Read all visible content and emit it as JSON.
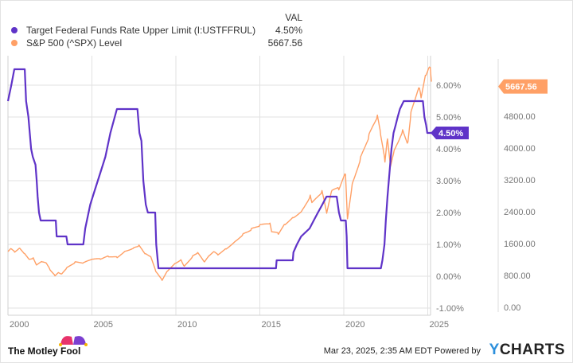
{
  "legend": {
    "value_header": "VAL",
    "items": [
      {
        "name": "Target Federal Funds Rate Upper Limit (I:USTFFRUL)",
        "value": "4.50%",
        "color": "#5f33c8"
      },
      {
        "name": "S&P 500 (^SPX) Level",
        "value": "5667.56",
        "color": "#ffa066"
      }
    ]
  },
  "footer": {
    "brand": "The Motley Fool",
    "timestamp": "Mar 23, 2025, 2:35 AM EDT",
    "powered_by": "Powered by",
    "ycharts_y": "Y",
    "ycharts_rest": "CHARTS"
  },
  "chart_data": {
    "type": "line",
    "x_ticks": [
      "2000",
      "2005",
      "2010",
      "2015",
      "2020",
      "2025"
    ],
    "xlim": [
      2000,
      2025.22
    ],
    "grid": true,
    "legend_placement": "top-left",
    "left_axis": {
      "ticks": [
        "-1.00%",
        "0.00%",
        "1.00%",
        "2.00%",
        "3.00%",
        "4.00%",
        "5.00%",
        "6.00%"
      ],
      "ylim": [
        -1,
        6.9
      ]
    },
    "right_axis": {
      "ticks": [
        "0.00",
        "800.00",
        "1600.00",
        "2400.00",
        "3200.00",
        "4000.00",
        "4800.00"
      ],
      "ylim": [
        0,
        6320
      ]
    },
    "series": [
      {
        "name": "Target Federal Funds Rate Upper Limit (I:USTFFRUL)",
        "axis": "left",
        "color": "#5f33c8",
        "last_label": "4.50%",
        "points": [
          [
            2000.0,
            5.5
          ],
          [
            2000.1,
            5.75
          ],
          [
            2000.2,
            6.0
          ],
          [
            2000.38,
            6.5
          ],
          [
            2001.0,
            6.5
          ],
          [
            2001.08,
            5.5
          ],
          [
            2001.22,
            5.0
          ],
          [
            2001.3,
            4.5
          ],
          [
            2001.38,
            4.0
          ],
          [
            2001.48,
            3.75
          ],
          [
            2001.64,
            3.5
          ],
          [
            2001.71,
            3.0
          ],
          [
            2001.77,
            2.5
          ],
          [
            2001.85,
            2.0
          ],
          [
            2001.95,
            1.75
          ],
          [
            2002.85,
            1.75
          ],
          [
            2002.9,
            1.25
          ],
          [
            2003.48,
            1.25
          ],
          [
            2003.55,
            1.0
          ],
          [
            2004.49,
            1.0
          ],
          [
            2004.6,
            1.5
          ],
          [
            2004.9,
            2.25
          ],
          [
            2005.2,
            2.75
          ],
          [
            2005.5,
            3.25
          ],
          [
            2005.8,
            3.75
          ],
          [
            2006.1,
            4.5
          ],
          [
            2006.49,
            5.25
          ],
          [
            2007.71,
            5.25
          ],
          [
            2007.83,
            4.5
          ],
          [
            2007.95,
            4.25
          ],
          [
            2008.06,
            3.0
          ],
          [
            2008.21,
            2.25
          ],
          [
            2008.33,
            2.0
          ],
          [
            2008.77,
            2.0
          ],
          [
            2008.83,
            1.0
          ],
          [
            2008.96,
            0.25
          ],
          [
            2015.96,
            0.25
          ],
          [
            2016.0,
            0.5
          ],
          [
            2016.96,
            0.5
          ],
          [
            2017.0,
            0.75
          ],
          [
            2017.21,
            1.0
          ],
          [
            2017.46,
            1.25
          ],
          [
            2017.96,
            1.5
          ],
          [
            2018.21,
            1.75
          ],
          [
            2018.46,
            2.0
          ],
          [
            2018.72,
            2.25
          ],
          [
            2018.97,
            2.5
          ],
          [
            2019.58,
            2.5
          ],
          [
            2019.71,
            2.0
          ],
          [
            2019.83,
            1.75
          ],
          [
            2020.12,
            1.75
          ],
          [
            2020.17,
            1.25
          ],
          [
            2020.22,
            0.25
          ],
          [
            2022.21,
            0.25
          ],
          [
            2022.3,
            0.5
          ],
          [
            2022.42,
            1.0
          ],
          [
            2022.5,
            1.75
          ],
          [
            2022.6,
            2.5
          ],
          [
            2022.72,
            3.25
          ],
          [
            2022.84,
            4.0
          ],
          [
            2022.96,
            4.5
          ],
          [
            2023.09,
            4.75
          ],
          [
            2023.21,
            5.0
          ],
          [
            2023.34,
            5.25
          ],
          [
            2023.57,
            5.5
          ],
          [
            2024.71,
            5.5
          ],
          [
            2024.8,
            5.0
          ],
          [
            2024.9,
            4.75
          ],
          [
            2024.97,
            4.5
          ],
          [
            2025.22,
            4.5
          ]
        ]
      },
      {
        "name": "S&P 500 (^SPX) Level",
        "axis": "right",
        "color": "#ffa066",
        "last_label": "5667.56",
        "points": [
          [
            2000.0,
            1400
          ],
          [
            2000.2,
            1480
          ],
          [
            2000.4,
            1400
          ],
          [
            2000.7,
            1500
          ],
          [
            2001.0,
            1350
          ],
          [
            2001.3,
            1200
          ],
          [
            2001.5,
            1230
          ],
          [
            2001.7,
            1050
          ],
          [
            2002.0,
            1140
          ],
          [
            2002.3,
            1100
          ],
          [
            2002.5,
            950
          ],
          [
            2002.8,
            800
          ],
          [
            2003.0,
            880
          ],
          [
            2003.2,
            840
          ],
          [
            2003.5,
            990
          ],
          [
            2004.0,
            1130
          ],
          [
            2004.5,
            1110
          ],
          [
            2005.0,
            1200
          ],
          [
            2005.5,
            1210
          ],
          [
            2006.0,
            1280
          ],
          [
            2006.5,
            1260
          ],
          [
            2007.0,
            1420
          ],
          [
            2007.5,
            1500
          ],
          [
            2007.8,
            1550
          ],
          [
            2008.2,
            1330
          ],
          [
            2008.5,
            1260
          ],
          [
            2008.8,
            900
          ],
          [
            2009.18,
            680
          ],
          [
            2009.5,
            920
          ],
          [
            2010.0,
            1120
          ],
          [
            2010.3,
            1200
          ],
          [
            2010.5,
            1030
          ],
          [
            2011.0,
            1280
          ],
          [
            2011.3,
            1360
          ],
          [
            2011.7,
            1130
          ],
          [
            2012.0,
            1300
          ],
          [
            2012.3,
            1400
          ],
          [
            2012.5,
            1330
          ],
          [
            2013.0,
            1480
          ],
          [
            2013.5,
            1650
          ],
          [
            2014.0,
            1840
          ],
          [
            2014.5,
            1960
          ],
          [
            2015.0,
            2050
          ],
          [
            2015.6,
            2100
          ],
          [
            2015.7,
            1900
          ],
          [
            2016.1,
            1850
          ],
          [
            2016.5,
            2100
          ],
          [
            2017.0,
            2270
          ],
          [
            2017.5,
            2430
          ],
          [
            2018.0,
            2800
          ],
          [
            2018.1,
            2600
          ],
          [
            2018.7,
            2900
          ],
          [
            2018.98,
            2350
          ],
          [
            2019.3,
            2950
          ],
          [
            2019.7,
            2980
          ],
          [
            2020.1,
            3380
          ],
          [
            2020.22,
            2240
          ],
          [
            2020.5,
            3100
          ],
          [
            2021.0,
            3750
          ],
          [
            2021.5,
            4300
          ],
          [
            2022.0,
            4780
          ],
          [
            2022.2,
            4300
          ],
          [
            2022.45,
            3670
          ],
          [
            2022.6,
            4280
          ],
          [
            2022.78,
            3580
          ],
          [
            2023.0,
            3970
          ],
          [
            2023.5,
            4450
          ],
          [
            2023.82,
            4120
          ],
          [
            2024.0,
            4850
          ],
          [
            2024.3,
            5250
          ],
          [
            2024.5,
            5500
          ],
          [
            2024.6,
            5300
          ],
          [
            2024.9,
            5900
          ],
          [
            2025.1,
            6100
          ],
          [
            2025.15,
            6050
          ],
          [
            2025.22,
            5667.56
          ]
        ]
      }
    ]
  }
}
